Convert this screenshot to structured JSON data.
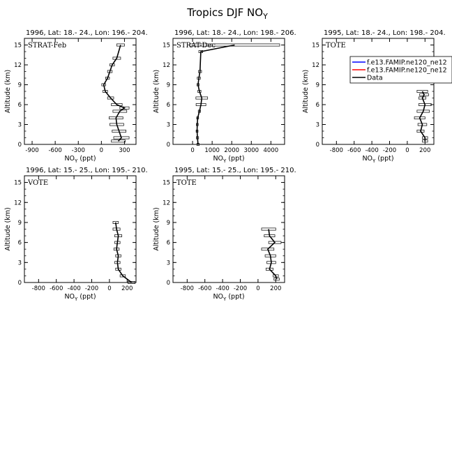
{
  "title": "Tropics DJF NO",
  "title_sub": "Y",
  "xlabel_main": "NO",
  "xlabel_sub": "Y",
  "xlabel_unit": " (ppt)",
  "ylabel": "Altitude (km)",
  "legend": {
    "entries": [
      {
        "name": "f.e13.FAMIP.ne120_ne12",
        "color": "#0000ff"
      },
      {
        "name": "f.e13.FAMIP.ne120_ne12",
        "color": "#ff0000"
      },
      {
        "name": "Data",
        "color": "#000000"
      }
    ]
  },
  "chart_data": [
    {
      "type": "line",
      "title": "1996, Lat: 18.- 24., Lon: 196.- 204.",
      "label": "STRAT-Feb",
      "xlim": [
        -1000,
        450
      ],
      "ylim": [
        0,
        16
      ],
      "xticks": [
        -900,
        -600,
        -300,
        0,
        300
      ],
      "yticks": [
        0,
        3,
        6,
        9,
        12,
        15
      ],
      "series": [
        {
          "name": "Data",
          "x": [
            220,
            260,
            230,
            200,
            190,
            240,
            300,
            200,
            120,
            50,
            30,
            80,
            110,
            140,
            200,
            250
          ],
          "y": [
            0.5,
            1,
            2,
            3,
            4,
            5,
            5.5,
            6,
            7,
            8,
            9,
            10,
            11,
            12,
            13,
            15
          ],
          "xerr": [
            90,
            100,
            90,
            90,
            90,
            90,
            60,
            70,
            40,
            30,
            25,
            25,
            30,
            30,
            50,
            50
          ]
        }
      ]
    },
    {
      "type": "line",
      "title": "1996, Lat: 18.- 24., Lon: 198.- 206.",
      "label": "STRAT-Dec",
      "xlim": [
        -1000,
        4700
      ],
      "ylim": [
        0,
        16
      ],
      "xticks": [
        0,
        1000,
        2000,
        3000,
        4000
      ],
      "yticks": [
        0,
        3,
        6,
        9,
        12,
        15
      ],
      "series": [
        {
          "name": "Data",
          "x": [
            280,
            250,
            230,
            240,
            260,
            350,
            430,
            470,
            350,
            280,
            320,
            380,
            420,
            2150
          ],
          "y": [
            0,
            1,
            2,
            3,
            4,
            5,
            6,
            7,
            8,
            9,
            10,
            11,
            14,
            15
          ],
          "xerr": [
            60,
            60,
            50,
            50,
            50,
            60,
            250,
            300,
            80,
            60,
            80,
            80,
            100,
            2300
          ]
        }
      ]
    },
    {
      "type": "line",
      "title": "1995, Lat: 18.- 24., Lon: 198.- 204.",
      "label": "TOTE",
      "xlim": [
        -960,
        300
      ],
      "ylim": [
        0,
        16
      ],
      "xticks": [
        -800,
        -600,
        -400,
        -200,
        0,
        200
      ],
      "yticks": [
        0,
        3,
        6,
        9,
        12,
        15
      ],
      "series": [
        {
          "name": "Data",
          "x": [
            200,
            200,
            150,
            170,
            140,
            180,
            200,
            170,
            190,
            170
          ],
          "y": [
            0.5,
            1,
            2,
            3,
            4,
            5,
            6,
            7,
            7.5,
            8
          ],
          "xerr": [
            30,
            30,
            40,
            50,
            60,
            70,
            70,
            40,
            50,
            60
          ]
        }
      ]
    },
    {
      "type": "line",
      "title": "1996, Lat: 15.- 25., Lon: 195.- 210.",
      "label": "VOTE",
      "xlim": [
        -960,
        300
      ],
      "ylim": [
        0,
        16
      ],
      "xticks": [
        -800,
        -600,
        -400,
        -200,
        0,
        200
      ],
      "yticks": [
        0,
        3,
        6,
        9,
        12,
        15
      ],
      "series": [
        {
          "name": "Data",
          "x": [
            250,
            150,
            100,
            90,
            100,
            80,
            90,
            100,
            80,
            70
          ],
          "y": [
            0,
            1,
            2,
            3,
            4,
            5,
            6,
            7,
            8,
            9
          ],
          "xerr": [
            40,
            30,
            30,
            30,
            30,
            30,
            30,
            40,
            40,
            30
          ]
        }
      ]
    },
    {
      "type": "line",
      "title": "1995, Lat: 15.- 25., Lon: 195.- 210.",
      "label": "TOTE",
      "xlim": [
        -960,
        300
      ],
      "ylim": [
        0,
        16
      ],
      "xticks": [
        -800,
        -600,
        -400,
        -200,
        0,
        200
      ],
      "yticks": [
        0,
        3,
        6,
        9,
        12,
        15
      ],
      "series": [
        {
          "name": "Data",
          "x": [
            210,
            200,
            130,
            150,
            140,
            110,
            190,
            130,
            120
          ],
          "y": [
            0.5,
            1,
            2,
            3,
            4,
            5,
            6,
            7,
            8
          ],
          "xerr": [
            30,
            30,
            40,
            50,
            60,
            70,
            70,
            60,
            80
          ]
        }
      ]
    }
  ]
}
